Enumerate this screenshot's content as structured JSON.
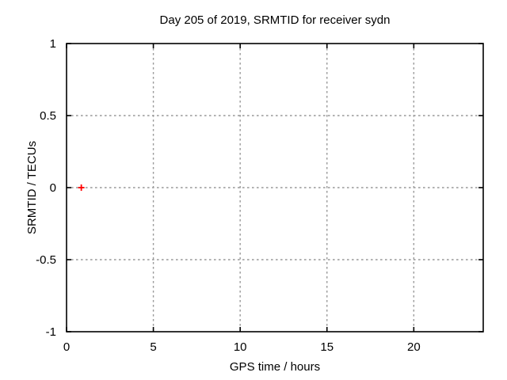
{
  "chart_data": {
    "type": "scatter",
    "title": "Day 205 of 2019, SRMTID for receiver sydn",
    "xlabel": "GPS time / hours",
    "ylabel": "SRMTID / TECUs",
    "xlim": [
      0,
      24
    ],
    "ylim": [
      -1,
      1
    ],
    "xticks": [
      0,
      5,
      10,
      15,
      20
    ],
    "yticks": [
      -1,
      -0.5,
      0,
      0.5,
      1
    ],
    "grid": true,
    "legend": "none",
    "colors": {
      "axis": "#000000",
      "grid": "#999999",
      "background": "#ffffff",
      "marker": "#ff0000"
    },
    "series": [
      {
        "name": "SRMTID",
        "marker": "plus",
        "color": "#ff0000",
        "points": [
          {
            "x": 0.85,
            "y": 0
          }
        ]
      }
    ]
  }
}
